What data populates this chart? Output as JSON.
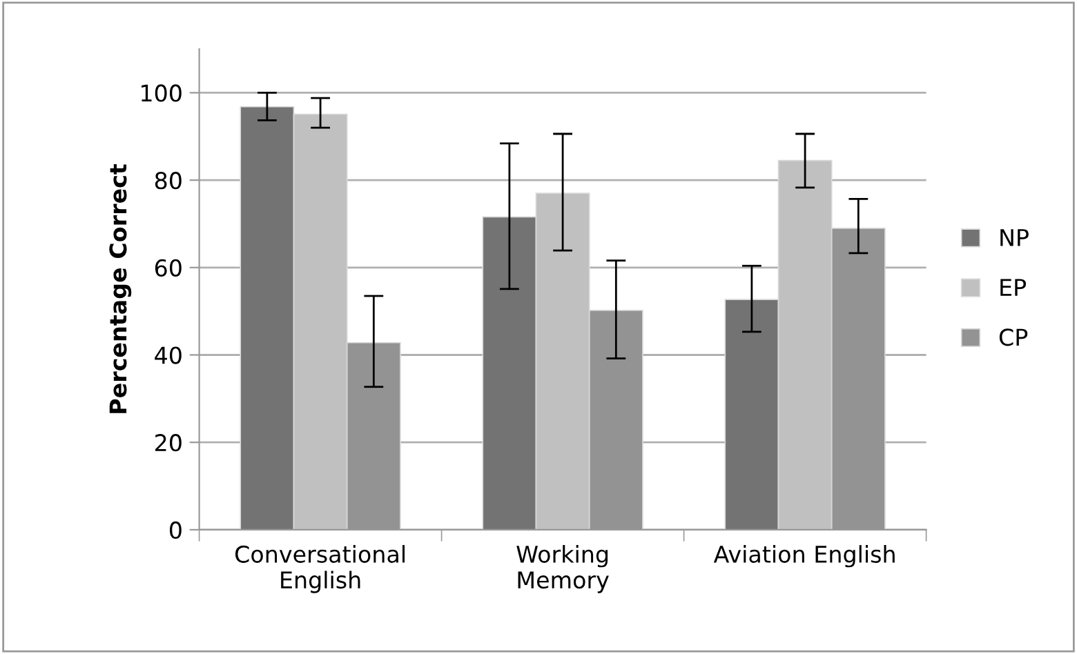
{
  "chart_data": {
    "type": "bar",
    "ylabel": "Percentage Correct",
    "categories": [
      "Conversational\nEnglish",
      "Working\nMemory",
      "Aviation English"
    ],
    "series": [
      {
        "name": "NP",
        "color": "#737373",
        "values": [
          96.8,
          71.6,
          52.7
        ],
        "errors": [
          [
            93.7,
            100
          ],
          [
            55.1,
            88.4
          ],
          [
            45.3,
            60.4
          ]
        ]
      },
      {
        "name": "EP",
        "color": "#c0c0c0",
        "values": [
          95.1,
          77.0,
          84.5
        ],
        "errors": [
          [
            92.0,
            98.8
          ],
          [
            63.9,
            90.6
          ],
          [
            78.3,
            90.6
          ]
        ]
      },
      {
        "name": "CP",
        "color": "#939393",
        "values": [
          42.8,
          50.2,
          69.0
        ],
        "errors": [
          [
            32.7,
            53.5
          ],
          [
            39.2,
            61.6
          ],
          [
            63.3,
            75.7
          ]
        ]
      }
    ],
    "ylim": [
      0,
      110
    ],
    "yticks": [
      0,
      20,
      40,
      60,
      80,
      100
    ],
    "grid": "y",
    "legend": "right"
  }
}
